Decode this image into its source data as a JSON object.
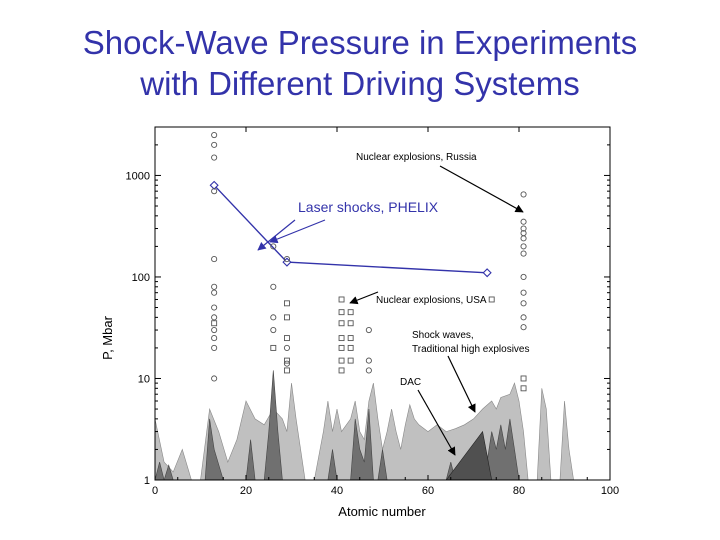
{
  "slide": {
    "title_line1": "Shock-Wave Pressure in Experiments",
    "title_line2": "with Different Driving Systems"
  },
  "chart_data": {
    "type": "scatter",
    "title": "Shock-Wave Pressure in Experiments with Different Driving Systems",
    "xlabel": "Atomic number",
    "ylabel": "P, Mbar",
    "xlim": [
      0,
      100
    ],
    "ylim": [
      1,
      3000
    ],
    "yscale": "log",
    "x_ticks": [
      0,
      20,
      40,
      60,
      80,
      100
    ],
    "y_ticks": [
      1,
      10,
      100,
      1000
    ],
    "colors": {
      "laser": "#3333aa",
      "markers": "#555555",
      "fill_light": "#c0c0c0",
      "fill_dark": "#707070"
    },
    "annotations": {
      "laser": "Laser shocks, PHELIX",
      "nuclear_russia": "Nuclear explosions, Russia",
      "nuclear_usa": "Nuclear explosions, USA",
      "shock_line1": "Shock waves,",
      "shock_line2": "Traditional high explosives",
      "dac": "DAC"
    },
    "series": [
      {
        "name": "Laser shocks, PHELIX",
        "marker": "diamond",
        "line": true,
        "points": [
          [
            13,
            800
          ],
          [
            29,
            140
          ],
          [
            73,
            110
          ]
        ]
      },
      {
        "name": "Nuclear explosions, Russia",
        "marker": "circle",
        "points": [
          [
            13,
            2500
          ],
          [
            13,
            2000
          ],
          [
            13,
            1500
          ],
          [
            13,
            700
          ],
          [
            13,
            150
          ],
          [
            13,
            80
          ],
          [
            13,
            70
          ],
          [
            13,
            50
          ],
          [
            13,
            40
          ],
          [
            13,
            30
          ],
          [
            13,
            25
          ],
          [
            13,
            20
          ],
          [
            13,
            10
          ],
          [
            26,
            200
          ],
          [
            26,
            80
          ],
          [
            26,
            40
          ],
          [
            26,
            30
          ],
          [
            29,
            150
          ],
          [
            29,
            20
          ],
          [
            29,
            14
          ],
          [
            47,
            30
          ],
          [
            47,
            15
          ],
          [
            47,
            12
          ],
          [
            81,
            650
          ],
          [
            81,
            350
          ],
          [
            81,
            300
          ],
          [
            81,
            270
          ],
          [
            81,
            240
          ],
          [
            81,
            200
          ],
          [
            81,
            170
          ],
          [
            81,
            100
          ],
          [
            81,
            70
          ],
          [
            81,
            55
          ],
          [
            81,
            40
          ],
          [
            81,
            32
          ]
        ]
      },
      {
        "name": "Nuclear explosions, USA",
        "marker": "square",
        "points": [
          [
            13,
            35
          ],
          [
            26,
            20
          ],
          [
            29,
            55
          ],
          [
            29,
            40
          ],
          [
            29,
            25
          ],
          [
            29,
            15
          ],
          [
            29,
            12
          ],
          [
            41,
            60
          ],
          [
            41,
            45
          ],
          [
            41,
            35
          ],
          [
            41,
            25
          ],
          [
            41,
            20
          ],
          [
            41,
            15
          ],
          [
            41,
            12
          ],
          [
            43,
            45
          ],
          [
            43,
            35
          ],
          [
            43,
            25
          ],
          [
            43,
            20
          ],
          [
            43,
            15
          ],
          [
            74,
            60
          ],
          [
            81,
            10
          ],
          [
            81,
            8
          ]
        ]
      }
    ],
    "regions": {
      "shock_waves_light": [
        [
          0,
          1
        ],
        [
          0,
          4
        ],
        [
          2,
          1.5
        ],
        [
          4,
          1.2
        ],
        [
          6,
          2
        ],
        [
          8,
          1
        ],
        [
          10,
          1
        ],
        [
          12,
          5
        ],
        [
          14,
          3
        ],
        [
          16,
          1.5
        ],
        [
          18,
          2.5
        ],
        [
          20,
          6
        ],
        [
          22,
          4
        ],
        [
          24,
          3.5
        ],
        [
          26,
          5
        ],
        [
          28,
          4
        ],
        [
          29,
          3
        ],
        [
          30,
          9
        ],
        [
          31,
          4
        ],
        [
          32,
          2
        ],
        [
          33,
          1
        ],
        [
          35,
          1
        ],
        [
          37,
          3
        ],
        [
          38,
          6
        ],
        [
          39,
          3
        ],
        [
          40,
          5
        ],
        [
          41,
          3
        ],
        [
          43,
          4
        ],
        [
          44,
          6
        ],
        [
          45,
          3
        ],
        [
          46,
          2.5
        ],
        [
          47,
          6
        ],
        [
          48,
          9
        ],
        [
          49,
          4
        ],
        [
          50,
          2
        ],
        [
          51,
          3
        ],
        [
          52,
          5
        ],
        [
          53,
          3
        ],
        [
          54,
          2
        ],
        [
          55,
          3.5
        ],
        [
          56,
          5.5
        ],
        [
          57,
          4
        ],
        [
          58,
          3.5
        ],
        [
          60,
          3
        ],
        [
          62,
          3.5
        ],
        [
          64,
          3
        ],
        [
          66,
          3.2
        ],
        [
          68,
          3.5
        ],
        [
          70,
          4
        ],
        [
          72,
          5
        ],
        [
          74,
          6
        ],
        [
          75,
          5
        ],
        [
          76,
          6.5
        ],
        [
          78,
          7
        ],
        [
          79,
          9
        ],
        [
          80,
          6
        ],
        [
          81,
          3
        ],
        [
          82,
          1
        ],
        [
          84,
          1
        ],
        [
          85,
          8
        ],
        [
          86,
          5
        ],
        [
          87,
          1
        ],
        [
          89,
          1
        ],
        [
          90,
          6
        ],
        [
          91,
          2
        ],
        [
          92,
          1
        ],
        [
          100,
          1
        ]
      ],
      "shock_waves_dark": [
        [
          0,
          1
        ],
        [
          1,
          1.5
        ],
        [
          2,
          1
        ],
        [
          3,
          1.4
        ],
        [
          4,
          1
        ],
        [
          11,
          1
        ],
        [
          12,
          4
        ],
        [
          13,
          2
        ],
        [
          15,
          1
        ],
        [
          20,
          1
        ],
        [
          21,
          2.5
        ],
        [
          22,
          1
        ],
        [
          24,
          1
        ],
        [
          25,
          3
        ],
        [
          26,
          12
        ],
        [
          27,
          3
        ],
        [
          28,
          1
        ],
        [
          38,
          1
        ],
        [
          39,
          2
        ],
        [
          40,
          1
        ],
        [
          43,
          1
        ],
        [
          44,
          4
        ],
        [
          45,
          2
        ],
        [
          46,
          1.5
        ],
        [
          47,
          5
        ],
        [
          48,
          1
        ],
        [
          49,
          1
        ],
        [
          50,
          2
        ],
        [
          51,
          1
        ],
        [
          64,
          1
        ],
        [
          65,
          1.5
        ],
        [
          66,
          1
        ],
        [
          70,
          1
        ],
        [
          72,
          2
        ],
        [
          73,
          1.5
        ],
        [
          74,
          3
        ],
        [
          75,
          2
        ],
        [
          76,
          3.5
        ],
        [
          77,
          2
        ],
        [
          78,
          4
        ],
        [
          79,
          2
        ],
        [
          80,
          1
        ],
        [
          100,
          1
        ]
      ],
      "dac": [
        [
          64,
          1
        ],
        [
          72,
          3
        ],
        [
          74,
          1
        ]
      ]
    }
  }
}
